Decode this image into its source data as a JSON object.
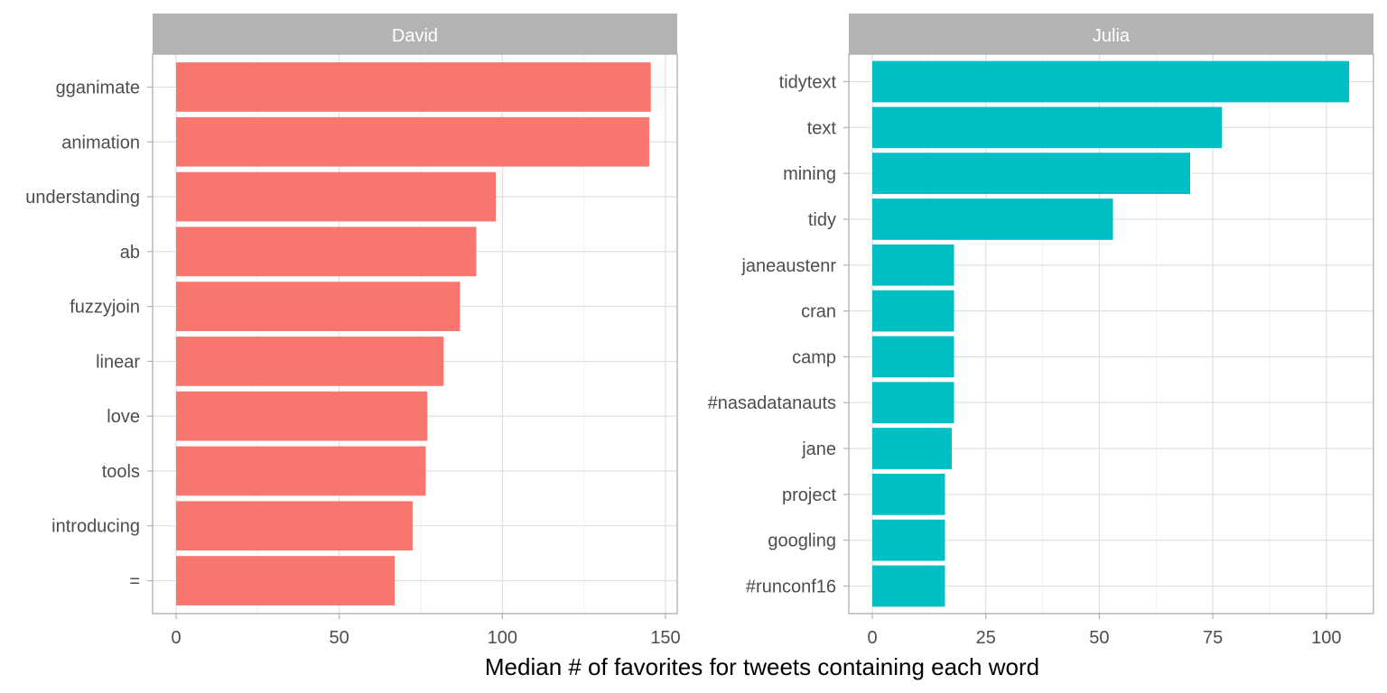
{
  "chart_data": {
    "type": "bar",
    "orientation": "horizontal",
    "xlabel": "Median # of favorites for tweets containing each word",
    "ylabel": "",
    "grid": true,
    "legend": "none",
    "panels": [
      {
        "facet": "David",
        "color": "#F8766D",
        "xlim": [
          0,
          150
        ],
        "xticks": [
          0,
          50,
          100,
          150
        ],
        "categories": [
          "gganimate",
          "animation",
          "understanding",
          "ab",
          "fuzzyjoin",
          "linear",
          "love",
          "tools",
          "introducing",
          "="
        ],
        "values": [
          145.5,
          145,
          98,
          92,
          87,
          82,
          77,
          76.5,
          72.5,
          67
        ]
      },
      {
        "facet": "Julia",
        "color": "#00BFC4",
        "xlim": [
          0,
          105
        ],
        "xticks": [
          0,
          25,
          50,
          75,
          100
        ],
        "categories": [
          "tidytext",
          "text",
          "mining",
          "tidy",
          "janeaustenr",
          "cran",
          "camp",
          "#nasadatanauts",
          "jane",
          "project",
          "googling",
          "#runconf16"
        ],
        "values": [
          105,
          77,
          70,
          53,
          18,
          18,
          18,
          18,
          17.5,
          16,
          16,
          16
        ]
      }
    ]
  }
}
